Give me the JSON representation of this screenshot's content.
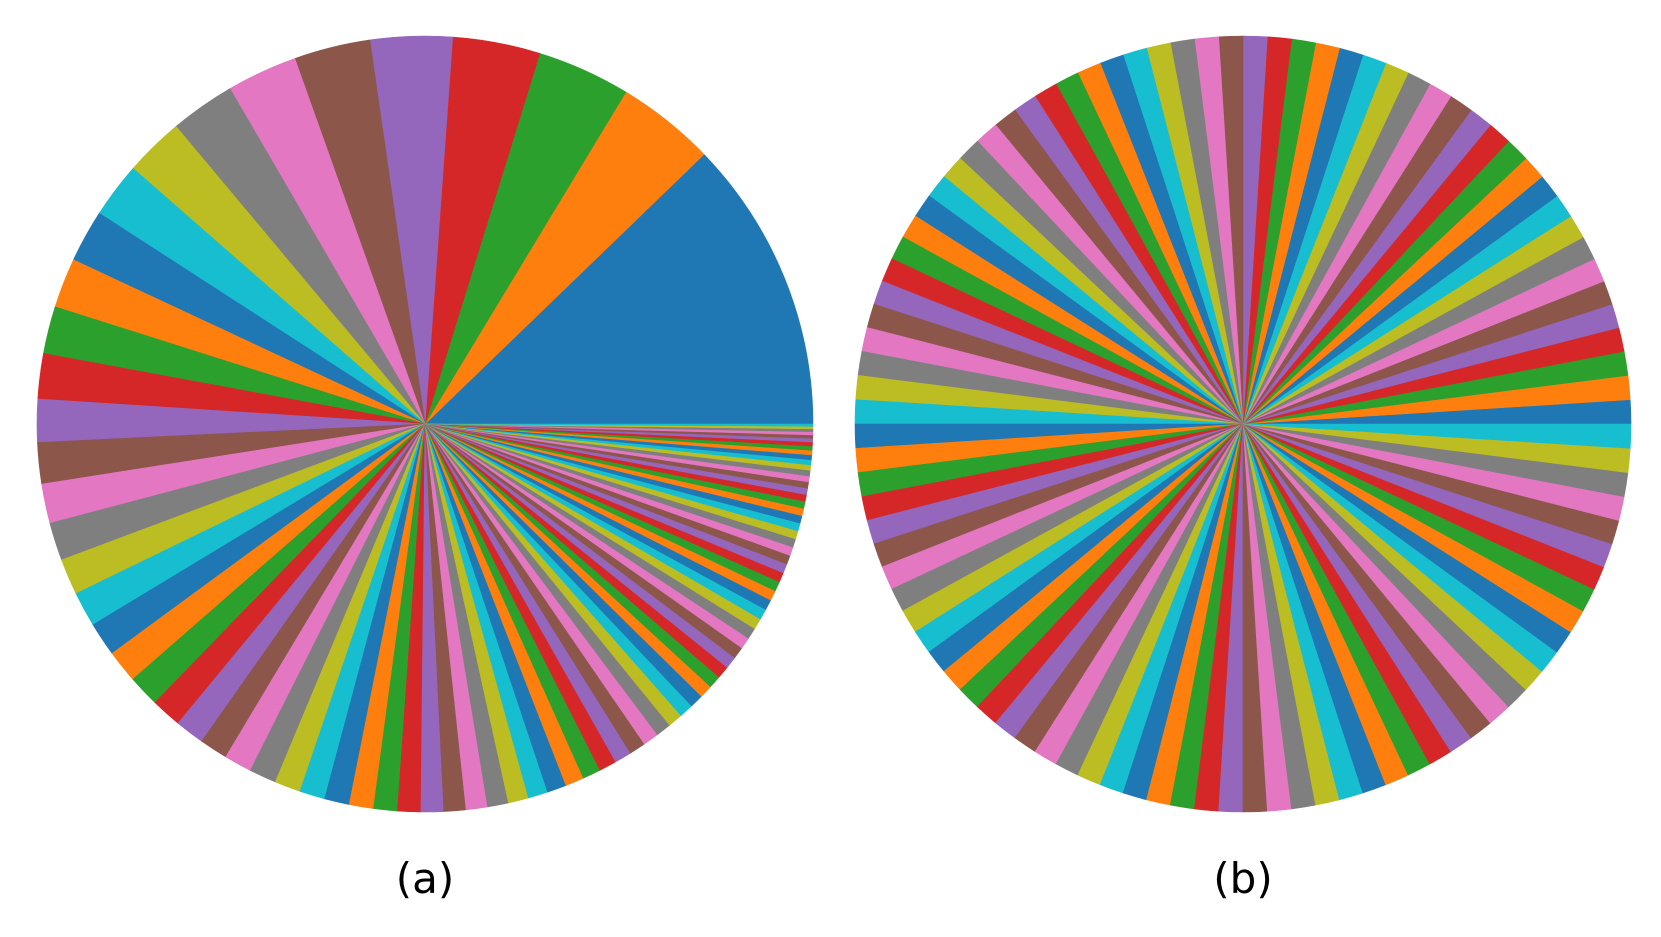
{
  "chart_data": [
    {
      "type": "pie",
      "label": "(a)",
      "title": "",
      "start_angle_deg": 0,
      "direction": "counterclockwise",
      "colors": [
        "#1f77b4",
        "#ff7f0e",
        "#2ca02c",
        "#d62728",
        "#9467bd",
        "#8c564b",
        "#e377c2",
        "#7f7f7f",
        "#bcbd22",
        "#17becf"
      ],
      "values": [
        52,
        17.5,
        16.5,
        15.5,
        14.5,
        13.5,
        12.5,
        11.5,
        10.5,
        9.8,
        9.3,
        8.8,
        8.4,
        8.0,
        7.6,
        7.3,
        7.0,
        6.7,
        6.4,
        6.2,
        6.0,
        5.8,
        5.6,
        5.4,
        5.2,
        5.0,
        4.9,
        4.8,
        4.6,
        4.5,
        4.4,
        4.3,
        4.2,
        4.1,
        4.0,
        3.9,
        3.8,
        3.7,
        3.6,
        3.5,
        3.4,
        3.3,
        3.2,
        3.1,
        3.0,
        2.9,
        2.8,
        2.7,
        2.6,
        2.5,
        2.4,
        2.3,
        2.25,
        2.2,
        2.15,
        2.1,
        2.05,
        2.0,
        1.95,
        1.9,
        1.85,
        1.8,
        1.75,
        1.7,
        1.65,
        1.6,
        1.55,
        1.5,
        1.45,
        1.4,
        1.35,
        1.3,
        1.25,
        1.2,
        1.15,
        1.1,
        1.05,
        1.0,
        0.95,
        0.9,
        0.85,
        0.8,
        0.75,
        0.7,
        0.65,
        0.6,
        0.55,
        0.5,
        0.45,
        0.4
      ]
    },
    {
      "type": "pie",
      "label": "(b)",
      "title": "",
      "start_angle_deg": 0,
      "direction": "counterclockwise",
      "colors": [
        "#1f77b4",
        "#ff7f0e",
        "#2ca02c",
        "#d62728",
        "#9467bd",
        "#8c564b",
        "#e377c2",
        "#7f7f7f",
        "#bcbd22",
        "#17becf"
      ],
      "values": [
        1,
        1,
        1,
        1,
        1,
        1,
        1,
        1,
        1,
        1,
        1,
        1,
        1,
        1,
        1,
        1,
        1,
        1,
        1,
        1,
        1,
        1,
        1,
        1,
        1,
        1,
        1,
        1,
        1,
        1,
        1,
        1,
        1,
        1,
        1,
        1,
        1,
        1,
        1,
        1,
        1,
        1,
        1,
        1,
        1,
        1,
        1,
        1,
        1,
        1,
        1,
        1,
        1,
        1,
        1,
        1,
        1,
        1,
        1,
        1,
        1,
        1,
        1,
        1,
        1,
        1,
        1,
        1,
        1,
        1,
        1,
        1,
        1,
        1,
        1,
        1,
        1,
        1,
        1,
        1,
        1,
        1,
        1,
        1,
        1,
        1,
        1,
        1,
        1,
        1,
        1,
        1,
        1,
        1,
        1,
        1,
        1,
        1,
        1,
        1
      ]
    }
  ]
}
